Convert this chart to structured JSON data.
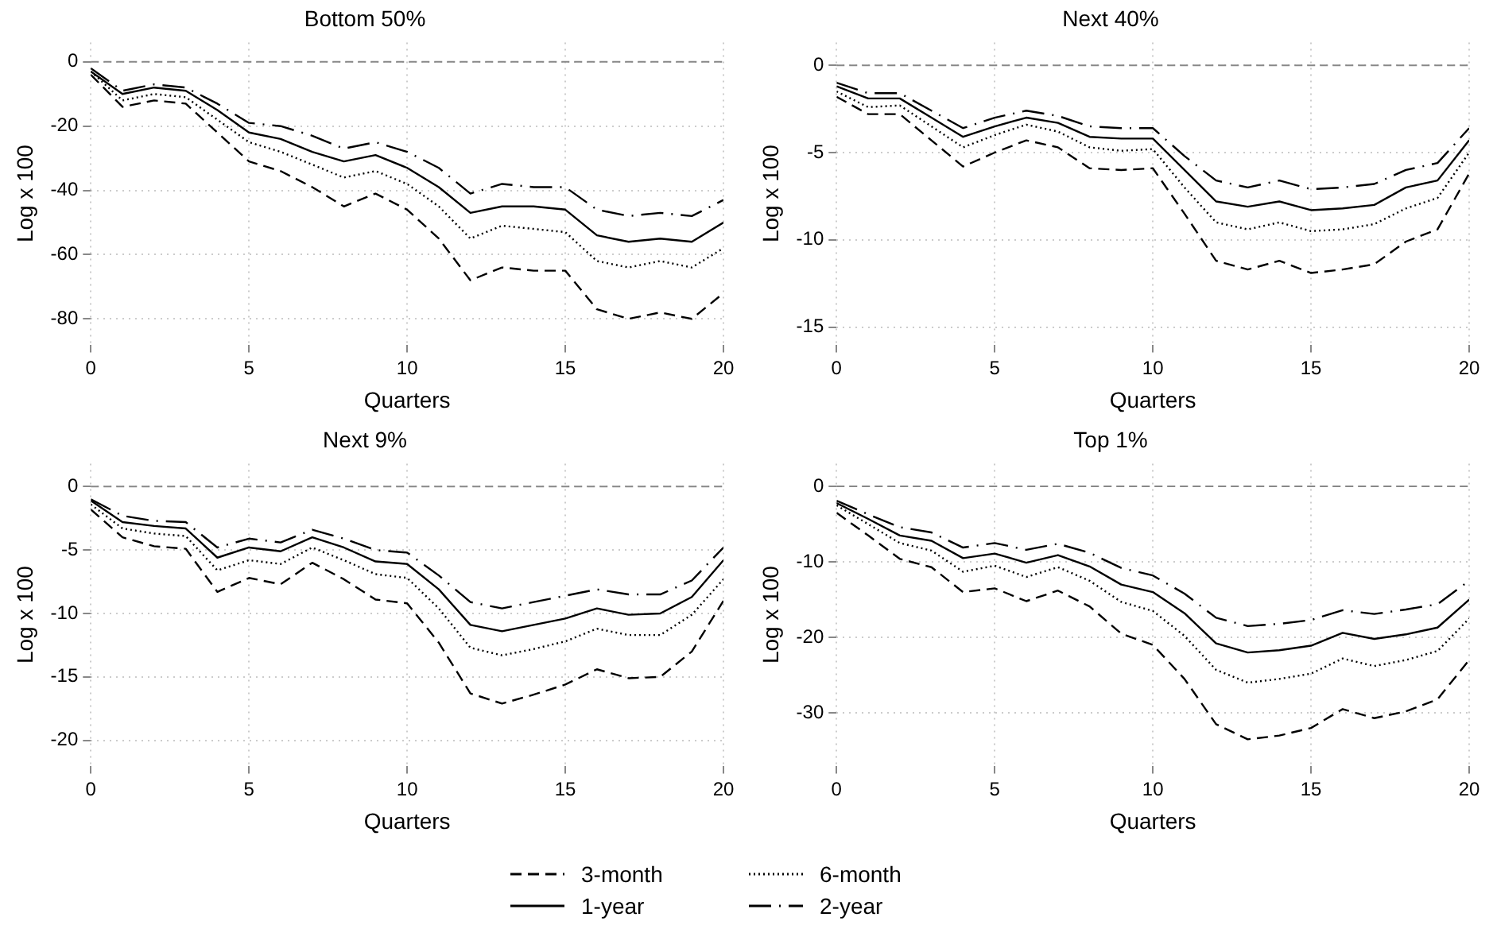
{
  "chart_data": [
    {
      "type": "line",
      "title": "Bottom 50%",
      "xlabel": "Quarters",
      "ylabel": "Log x 100",
      "x": [
        0,
        1,
        2,
        3,
        4,
        5,
        6,
        7,
        8,
        9,
        10,
        11,
        12,
        13,
        14,
        15,
        16,
        17,
        18,
        19,
        20
      ],
      "xlim": [
        0,
        20
      ],
      "xticks": [
        0,
        5,
        10,
        15,
        20
      ],
      "ylim": [
        -88,
        6
      ],
      "yticks": [
        0,
        -20,
        -40,
        -60,
        -80
      ],
      "grid": true,
      "legend": "bottom",
      "ref_lines": [
        {
          "axis": "y",
          "value": 0,
          "color": "#888888",
          "line_style": "dashed"
        }
      ],
      "series": [
        {
          "name": "3-month",
          "color": "#000000",
          "line_style": "dashed",
          "values": [
            -4,
            -14,
            -12,
            -13,
            -22,
            -31,
            -34,
            -39,
            -45,
            -41,
            -46,
            -55,
            -68,
            -64,
            -65,
            -65,
            -77,
            -80,
            -78,
            -80,
            -72
          ]
        },
        {
          "name": "6-month",
          "color": "#000000",
          "line_style": "dotted",
          "values": [
            -3,
            -12,
            -10,
            -11,
            -18,
            -25,
            -28,
            -32,
            -36,
            -34,
            -38,
            -45,
            -55,
            -51,
            -52,
            -53,
            -62,
            -64,
            -62,
            -64,
            -58
          ]
        },
        {
          "name": "1-year",
          "color": "#000000",
          "line_style": "solid",
          "values": [
            -3,
            -10,
            -8,
            -9,
            -15,
            -22,
            -24,
            -28,
            -31,
            -29,
            -33,
            -39,
            -47,
            -45,
            -45,
            -46,
            -54,
            -56,
            -55,
            -56,
            -50
          ]
        },
        {
          "name": "2-year",
          "color": "#000000",
          "line_style": "dashed",
          "values": [
            -2,
            -9,
            -7,
            -8,
            -13,
            -19,
            -20,
            -23,
            -27,
            -25,
            -28,
            -33,
            -41,
            -38,
            -39,
            -39,
            -46,
            -48,
            -47,
            -48,
            -43
          ]
        }
      ]
    },
    {
      "type": "line",
      "title": "Next 40%",
      "xlabel": "Quarters",
      "ylabel": "Log x 100",
      "x": [
        0,
        1,
        2,
        3,
        4,
        5,
        6,
        7,
        8,
        9,
        10,
        11,
        12,
        13,
        14,
        15,
        16,
        17,
        18,
        19,
        20
      ],
      "xlim": [
        0,
        20
      ],
      "xticks": [
        0,
        5,
        10,
        15,
        20
      ],
      "ylim": [
        -16,
        1.3
      ],
      "yticks": [
        0,
        -5,
        -10,
        -15
      ],
      "grid": true,
      "ref_lines": [
        {
          "axis": "y",
          "value": 0,
          "color": "#888888",
          "line_style": "dashed"
        }
      ],
      "series": [
        {
          "color": "#000000",
          "line_style": "dashed",
          "values": [
            -1.8,
            -2.8,
            -2.8,
            -4.3,
            -5.8,
            -5,
            -4.3,
            -4.7,
            -5.9,
            -6,
            -5.9,
            -8.5,
            -11.2,
            -11.7,
            -11.2,
            -11.9,
            -11.7,
            -11.4,
            -10.1,
            -9.4,
            -6.2
          ]
        },
        {
          "color": "#000000",
          "line_style": "dotted",
          "values": [
            -1.5,
            -2.4,
            -2.3,
            -3.5,
            -4.7,
            -4,
            -3.4,
            -3.8,
            -4.7,
            -4.9,
            -4.8,
            -7,
            -9,
            -9.4,
            -9,
            -9.5,
            -9.4,
            -9.1,
            -8.2,
            -7.6,
            -5
          ]
        },
        {
          "color": "#000000",
          "line_style": "solid",
          "values": [
            -1.2,
            -1.9,
            -1.9,
            -3,
            -4.1,
            -3.5,
            -3,
            -3.3,
            -4.1,
            -4.2,
            -4.2,
            -6,
            -7.8,
            -8.1,
            -7.8,
            -8.3,
            -8.2,
            -8,
            -7,
            -6.6,
            -4.3
          ]
        },
        {
          "color": "#000000",
          "line_style": "dashed",
          "values": [
            -1,
            -1.6,
            -1.6,
            -2.6,
            -3.6,
            -3,
            -2.6,
            -2.9,
            -3.5,
            -3.6,
            -3.6,
            -5.2,
            -6.6,
            -7,
            -6.6,
            -7.1,
            -7,
            -6.8,
            -6,
            -5.6,
            -3.6
          ]
        }
      ]
    },
    {
      "type": "line",
      "title": "Next 9%",
      "xlabel": "Quarters",
      "ylabel": "Log x 100",
      "x": [
        0,
        1,
        2,
        3,
        4,
        5,
        6,
        7,
        8,
        9,
        10,
        11,
        12,
        13,
        14,
        15,
        16,
        17,
        18,
        19,
        20
      ],
      "xlim": [
        0,
        20
      ],
      "xticks": [
        0,
        5,
        10,
        15,
        20
      ],
      "ylim": [
        -22,
        1.8
      ],
      "yticks": [
        0,
        -5,
        -10,
        -15,
        -20
      ],
      "grid": true,
      "ref_lines": [
        {
          "axis": "y",
          "value": 0,
          "color": "#888888",
          "line_style": "dashed"
        }
      ],
      "series": [
        {
          "color": "#000000",
          "line_style": "dashed",
          "values": [
            -1.8,
            -4,
            -4.7,
            -4.9,
            -8.3,
            -7.2,
            -7.7,
            -6,
            -7.3,
            -8.9,
            -9.2,
            -12.3,
            -16.3,
            -17.1,
            -16.4,
            -15.6,
            -14.4,
            -15.1,
            -15,
            -13,
            -9
          ]
        },
        {
          "color": "#000000",
          "line_style": "dotted",
          "values": [
            -1.4,
            -3.3,
            -3.7,
            -3.9,
            -6.6,
            -5.8,
            -6.1,
            -4.8,
            -5.8,
            -6.9,
            -7.2,
            -9.6,
            -12.7,
            -13.3,
            -12.8,
            -12.2,
            -11.2,
            -11.7,
            -11.7,
            -10.1,
            -7.3
          ]
        },
        {
          "color": "#000000",
          "line_style": "solid",
          "values": [
            -1.1,
            -2.8,
            -3.1,
            -3.3,
            -5.6,
            -4.8,
            -5.1,
            -4,
            -4.8,
            -5.9,
            -6.1,
            -8.1,
            -10.9,
            -11.4,
            -10.9,
            -10.4,
            -9.6,
            -10.1,
            -10,
            -8.7,
            -5.8
          ]
        },
        {
          "color": "#000000",
          "line_style": "dashed",
          "values": [
            -1,
            -2.3,
            -2.7,
            -2.8,
            -4.8,
            -4.1,
            -4.4,
            -3.4,
            -4.1,
            -5,
            -5.2,
            -7,
            -9.1,
            -9.6,
            -9.1,
            -8.6,
            -8.1,
            -8.5,
            -8.5,
            -7.4,
            -4.8
          ]
        }
      ]
    },
    {
      "type": "line",
      "title": "Top 1%",
      "xlabel": "Quarters",
      "ylabel": "Log x 100",
      "x": [
        0,
        1,
        2,
        3,
        4,
        5,
        6,
        7,
        8,
        9,
        10,
        11,
        12,
        13,
        14,
        15,
        16,
        17,
        18,
        19,
        20
      ],
      "xlim": [
        0,
        20
      ],
      "xticks": [
        0,
        5,
        10,
        15,
        20
      ],
      "ylim": [
        -37,
        3
      ],
      "yticks": [
        0,
        -10,
        -20,
        -30
      ],
      "grid": true,
      "ref_lines": [
        {
          "axis": "y",
          "value": 0,
          "color": "#888888",
          "line_style": "dashed"
        }
      ],
      "series": [
        {
          "color": "#000000",
          "line_style": "dashed",
          "values": [
            -3.5,
            -6.5,
            -9.6,
            -10.7,
            -14,
            -13.5,
            -15.2,
            -13.8,
            -15.9,
            -19.5,
            -21,
            -25.5,
            -31.5,
            -33.5,
            -33,
            -32,
            -29.5,
            -30.7,
            -29.8,
            -28.2,
            -23
          ]
        },
        {
          "color": "#000000",
          "line_style": "dotted",
          "values": [
            -2.5,
            -5,
            -7.5,
            -8.5,
            -11.3,
            -10.5,
            -12,
            -10.7,
            -12.5,
            -15.3,
            -16.5,
            -19.8,
            -24.3,
            -26,
            -25.5,
            -24.8,
            -22.8,
            -23.8,
            -23,
            -21.8,
            -17.5
          ]
        },
        {
          "color": "#000000",
          "line_style": "solid",
          "values": [
            -2.2,
            -4.3,
            -6.5,
            -7.2,
            -9.5,
            -8.9,
            -10.1,
            -9.1,
            -10.6,
            -13,
            -14,
            -16.8,
            -20.8,
            -22,
            -21.7,
            -21.1,
            -19.4,
            -20.2,
            -19.6,
            -18.7,
            -15
          ]
        },
        {
          "color": "#000000",
          "line_style": "dashed",
          "values": [
            -1.9,
            -3.7,
            -5.4,
            -6.1,
            -8.1,
            -7.5,
            -8.4,
            -7.6,
            -8.8,
            -10.8,
            -11.8,
            -14.2,
            -17.4,
            -18.5,
            -18.2,
            -17.7,
            -16.4,
            -16.9,
            -16.3,
            -15.6,
            -12.5
          ]
        }
      ]
    }
  ]
}
